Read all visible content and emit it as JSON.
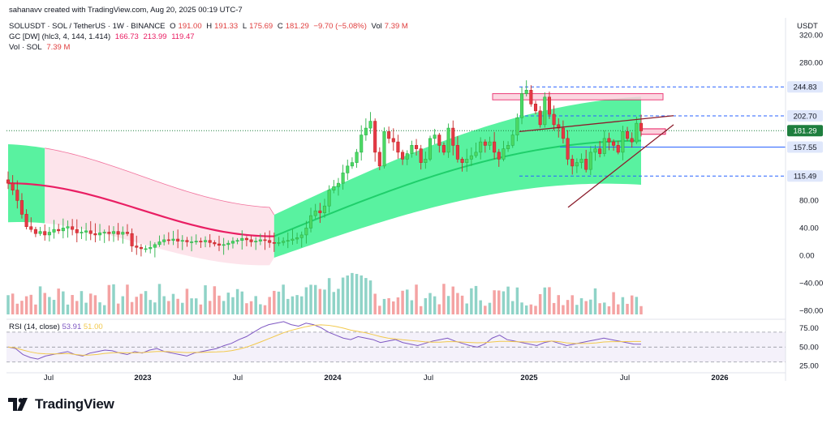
{
  "header": {
    "creator": "sahanavv created with TradingView.com, Aug 20, 2025 00:19 UTC-7",
    "symbol": "SOLUSDT · SOL / TetherUS · 1W · BINANCE",
    "o_label": "O",
    "o": "191.00",
    "h_label": "H",
    "h": "191.33",
    "l_label": "L",
    "l": "175.69",
    "c_label": "C",
    "c": "181.29",
    "change": "−9.70 (−5.08%)",
    "vol_label": "Vol",
    "vol": "7.39 M",
    "gc_label": "GC [DW] (hlc3, 4, 144, 1.414)",
    "gc_v1": "166.73",
    "gc_v2": "213.99",
    "gc_v3": "119.47",
    "vol_sol_label": "Vol · SOL",
    "vol_sol": "7.39 M"
  },
  "rsi": {
    "label": "RSI (14, close)",
    "value": "53.91",
    "ma": "51.00"
  },
  "axis_unit": "USDT",
  "brand": "TradingView",
  "colors": {
    "up": "#4cd964",
    "down": "#e53946",
    "vol_up": "#8fd3c7",
    "vol_down": "#f4a3a3",
    "band_green": "#3cf08f",
    "band_pink": "#fde3ea",
    "basis": "#e91e63",
    "rsi_line": "#7e57c2",
    "rsi_ma": "#f2c94c",
    "level_line": "#2962ff"
  },
  "chart_data": {
    "type": "candlestick",
    "title": "SOLUSDT · SOL / TetherUS · 1W · BINANCE",
    "ylabel": "USDT",
    "ylim": [
      -90,
      345
    ],
    "y_ticks": [
      -80,
      -40,
      0,
      40,
      80,
      280,
      320
    ],
    "x_ticks": [
      "Jul",
      "2023",
      "Jul",
      "2024",
      "Jul",
      "2025",
      "Jul",
      "2026"
    ],
    "price_levels": [
      {
        "label": "244.83",
        "value": 244.83,
        "style": "dashed"
      },
      {
        "label": "202.70",
        "value": 202.7,
        "style": "dashed"
      },
      {
        "label": "181.29",
        "value": 181.29,
        "style": "current"
      },
      {
        "label": "157.55",
        "value": 157.55,
        "style": "solid"
      },
      {
        "label": "115.49",
        "value": 115.49,
        "style": "dashed"
      }
    ],
    "close_series": [
      105,
      95,
      80,
      60,
      42,
      38,
      32,
      35,
      30,
      34,
      38,
      36,
      40,
      42,
      38,
      33,
      34,
      36,
      32,
      30,
      33,
      34,
      32,
      35,
      31,
      34,
      32,
      14,
      12,
      10,
      10,
      12,
      16,
      20,
      23,
      22,
      24,
      21,
      22,
      20,
      20,
      21,
      20,
      22,
      19,
      17,
      15,
      16,
      18,
      21,
      22,
      25,
      23,
      20,
      21,
      23,
      22,
      19,
      18,
      19,
      21,
      22,
      24,
      26,
      30,
      40,
      58,
      65,
      62,
      72,
      95,
      100,
      105,
      120,
      130,
      135,
      150,
      175,
      185,
      195,
      150,
      130,
      180,
      170,
      165,
      150,
      140,
      148,
      160,
      155,
      135,
      140,
      170,
      175,
      160,
      150,
      185,
      160,
      140,
      135,
      140,
      145,
      150,
      165,
      160,
      165,
      150,
      140,
      155,
      160,
      175,
      200,
      235,
      240,
      220,
      210,
      190,
      230,
      205,
      190,
      185,
      170,
      140,
      130,
      135,
      140,
      125,
      150,
      155,
      148,
      170,
      165,
      160,
      150,
      180,
      170,
      165,
      192,
      181
    ],
    "gc_basis_start": 105,
    "gc_basis_min": 28,
    "gc_basis_end": 166.73,
    "rsi_series": [
      50,
      48,
      40,
      36,
      34,
      38,
      40,
      42,
      44,
      40,
      38,
      42,
      44,
      46,
      45,
      42,
      40,
      44,
      42,
      46,
      48,
      44,
      42,
      40,
      38,
      42,
      44,
      46,
      48,
      52,
      55,
      60,
      64,
      70,
      76,
      80,
      82,
      84,
      80,
      78,
      82,
      80,
      76,
      70,
      66,
      62,
      60,
      64,
      62,
      60,
      56,
      58,
      60,
      56,
      54,
      52,
      55,
      58,
      60,
      62,
      58,
      55,
      52,
      50,
      54,
      62,
      66,
      60,
      58,
      56,
      54,
      52,
      56,
      58,
      55,
      52,
      54,
      56,
      58,
      60,
      62,
      60,
      58,
      56,
      54,
      53.91
    ]
  }
}
